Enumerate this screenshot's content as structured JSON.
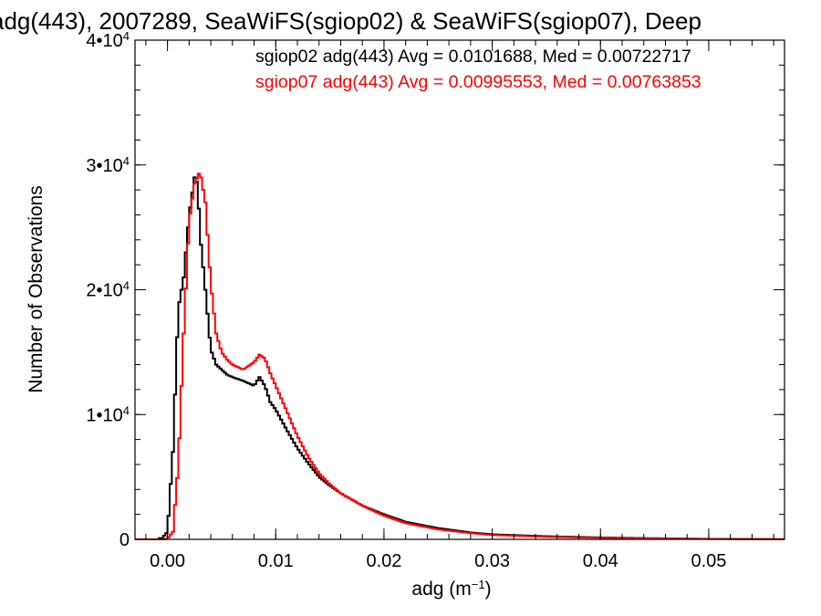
{
  "chart_data": {
    "type": "line",
    "title": "adg(443), 2007289, SeaWiFS(sgiop02) & SeaWiFS(sgiop07), Deep",
    "xlabel": "adg (m⁻¹)",
    "ylabel": "Number of Observations",
    "xlim": [
      -0.003,
      0.057
    ],
    "ylim": [
      0,
      40000
    ],
    "xticks": [
      {
        "value": 0.0,
        "label": "0.00"
      },
      {
        "value": 0.01,
        "label": "0.01"
      },
      {
        "value": 0.02,
        "label": "0.02"
      },
      {
        "value": 0.03,
        "label": "0.03"
      },
      {
        "value": 0.04,
        "label": "0.04"
      },
      {
        "value": 0.05,
        "label": "0.05"
      }
    ],
    "yticks": [
      {
        "value": 0,
        "base": "0",
        "exp": ""
      },
      {
        "value": 10000,
        "base": "1•10",
        "exp": "4"
      },
      {
        "value": 20000,
        "base": "2•10",
        "exp": "4"
      },
      {
        "value": 30000,
        "base": "3•10",
        "exp": "4"
      },
      {
        "value": 40000,
        "base": "4•10",
        "exp": "4"
      }
    ],
    "grid": false,
    "legend": [
      {
        "text": "sgiop02 adg(443) Avg = 0.0101688, Med = 0.00722717",
        "color": "#000000"
      },
      {
        "text": "sgiop07 adg(443) Avg = 0.00995553, Med = 0.00763853",
        "color": "#ff0000"
      }
    ],
    "series": [
      {
        "color": "#000000",
        "step": "histogram",
        "x": [
          -0.0005,
          0.0,
          0.0005,
          0.001,
          0.0015,
          0.002,
          0.0025,
          0.0028,
          0.003,
          0.0035,
          0.004,
          0.0045,
          0.005,
          0.0055,
          0.006,
          0.007,
          0.008,
          0.0085,
          0.009,
          0.0095,
          0.01,
          0.011,
          0.012,
          0.013,
          0.014,
          0.015,
          0.016,
          0.018,
          0.02,
          0.022,
          0.025,
          0.028,
          0.03,
          0.035,
          0.04,
          0.045,
          0.05,
          0.057
        ],
        "y": [
          100,
          600,
          7000,
          18500,
          21000,
          26000,
          29000,
          28500,
          24500,
          20000,
          15200,
          14000,
          13600,
          13200,
          13000,
          12700,
          12300,
          13000,
          12300,
          11000,
          10400,
          8800,
          7300,
          6100,
          5000,
          4300,
          3700,
          2700,
          2000,
          1400,
          900,
          550,
          400,
          250,
          150,
          90,
          40,
          10
        ]
      },
      {
        "color": "#ff0000",
        "step": "histogram",
        "x": [
          0.0,
          0.0005,
          0.001,
          0.0015,
          0.002,
          0.0025,
          0.003,
          0.0035,
          0.004,
          0.0045,
          0.005,
          0.0055,
          0.006,
          0.0065,
          0.007,
          0.0075,
          0.008,
          0.0085,
          0.009,
          0.0095,
          0.01,
          0.011,
          0.012,
          0.013,
          0.014,
          0.015,
          0.016,
          0.018,
          0.02,
          0.022,
          0.025,
          0.028,
          0.03,
          0.035,
          0.04,
          0.045,
          0.05,
          0.057
        ],
        "y": [
          50,
          600,
          6000,
          16500,
          25500,
          28500,
          29500,
          27000,
          20500,
          16500,
          15000,
          14400,
          14000,
          13800,
          13600,
          13900,
          14200,
          14800,
          14500,
          13300,
          12300,
          10300,
          8300,
          6600,
          5300,
          4400,
          3700,
          2700,
          1900,
          1300,
          800,
          500,
          350,
          200,
          120,
          70,
          30,
          10
        ]
      }
    ]
  }
}
